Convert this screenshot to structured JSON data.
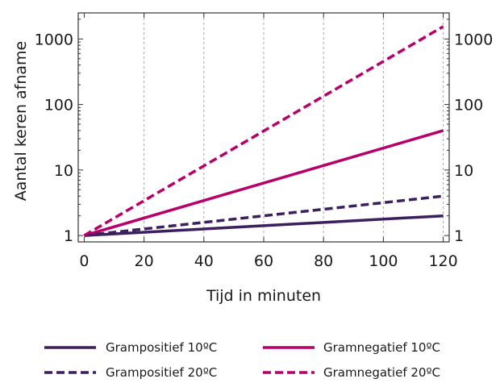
{
  "chart_data": {
    "type": "line",
    "title": "",
    "xlabel": "Tijd in minuten",
    "ylabel": "Aantal keren afname",
    "x_scale": "linear",
    "y_scale": "log",
    "xlim": [
      -2,
      122
    ],
    "ylim": [
      0.8,
      2500
    ],
    "x_ticks": [
      0,
      20,
      40,
      60,
      80,
      100,
      120
    ],
    "y_ticks": [
      1,
      10,
      100,
      1000
    ],
    "y_tick_labels": [
      "1",
      "10",
      "100",
      "1000"
    ],
    "x_grid": true,
    "y_grid": false,
    "legend_position": "bottom",
    "series": [
      {
        "name": "Grampositief 10ºC",
        "color": "#3b1f5e",
        "dash": "solid",
        "x": [
          0,
          120
        ],
        "y": [
          1,
          2
        ]
      },
      {
        "name": "Gramnegatief 10ºC",
        "color": "#b8006b",
        "dash": "solid",
        "x": [
          0,
          120
        ],
        "y": [
          1,
          40
        ]
      },
      {
        "name": "Grampositief 20ºC",
        "color": "#3b1f5e",
        "dash": "dashed",
        "x": [
          0,
          120
        ],
        "y": [
          1,
          4
        ]
      },
      {
        "name": "Gramnegatief 20ºC",
        "color": "#b8006b",
        "dash": "dashed",
        "x": [
          0,
          120
        ],
        "y": [
          1,
          1550
        ]
      }
    ]
  }
}
